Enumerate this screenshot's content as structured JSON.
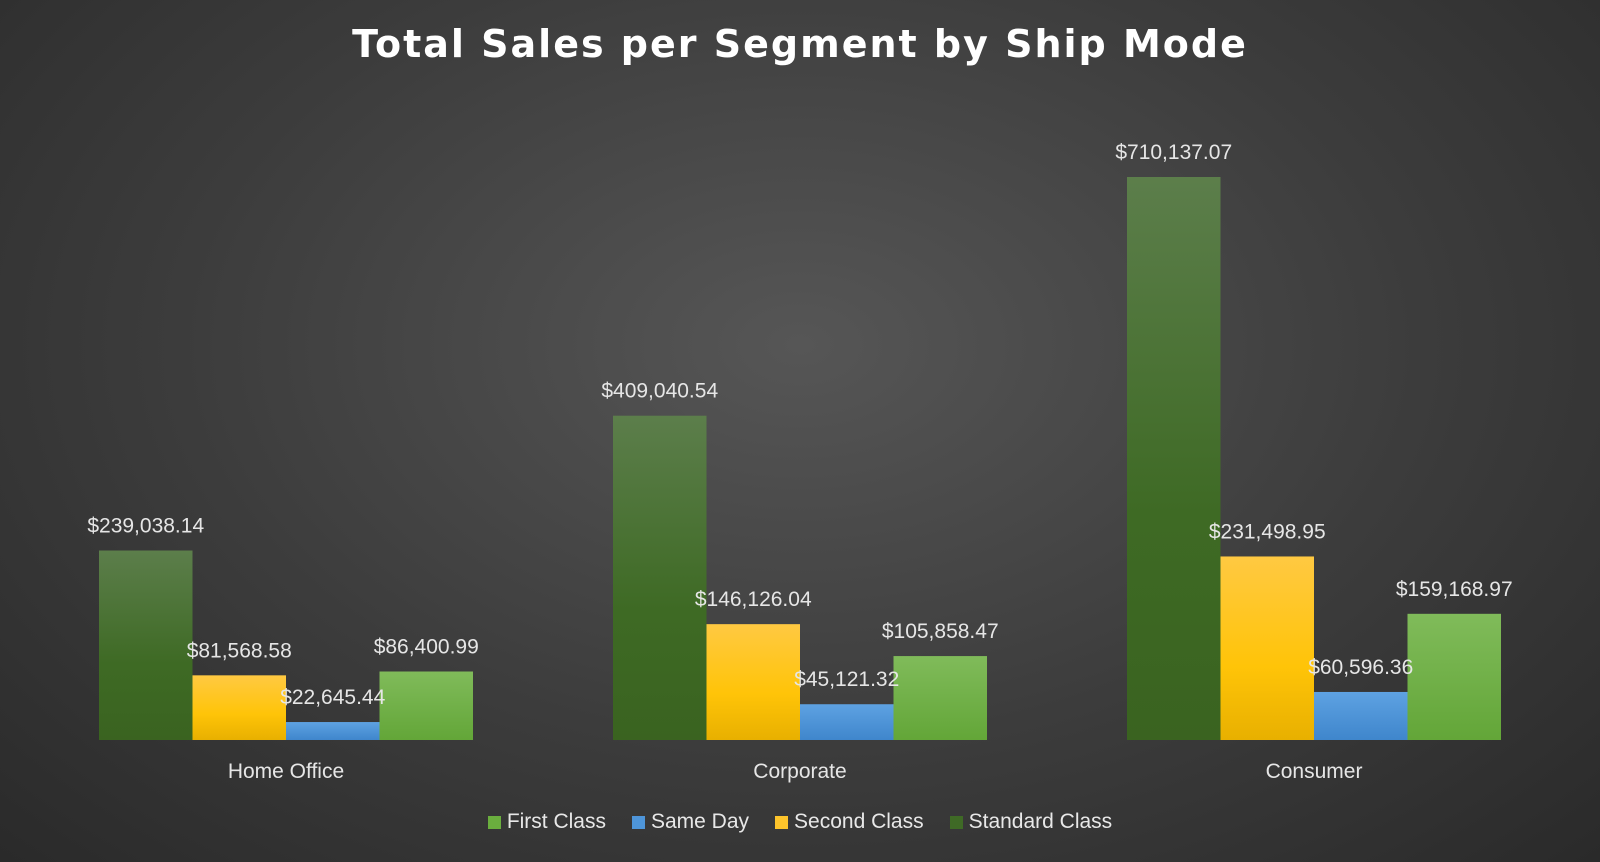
{
  "chart_data": {
    "type": "bar",
    "title": "Total Sales per Segment by Ship Mode",
    "xlabel": "",
    "ylabel": "",
    "ylim": [
      0,
      710137.07
    ],
    "grid": false,
    "legend_position": "bottom",
    "categories": [
      "Home Office",
      "Corporate",
      "Consumer"
    ],
    "draw_order": [
      "Standard Class",
      "Second Class",
      "Same Day",
      "First Class"
    ],
    "series": [
      {
        "name": "First Class",
        "color": "#6aae3e",
        "values": [
          86400.99,
          105858.47,
          159168.97
        ],
        "labels": [
          "$86,400.99",
          "$105,858.47",
          "$159,168.97"
        ]
      },
      {
        "name": "Same Day",
        "color": "#4e95d9",
        "values": [
          22645.44,
          45121.32,
          60596.36
        ],
        "labels": [
          "$22,645.44",
          "$45,121.32",
          "$60,596.36"
        ]
      },
      {
        "name": "Second Class",
        "color": "#fdc42b",
        "values": [
          81568.58,
          146126.04,
          231498.95
        ],
        "labels": [
          "$81,568.58",
          "$146,126.04",
          "$231,498.95"
        ]
      },
      {
        "name": "Standard Class",
        "color": "#3f6a26",
        "values": [
          239038.14,
          409040.54,
          710137.07
        ],
        "labels": [
          "$239,038.14",
          "$409,040.54",
          "$710,137.07"
        ]
      }
    ]
  }
}
